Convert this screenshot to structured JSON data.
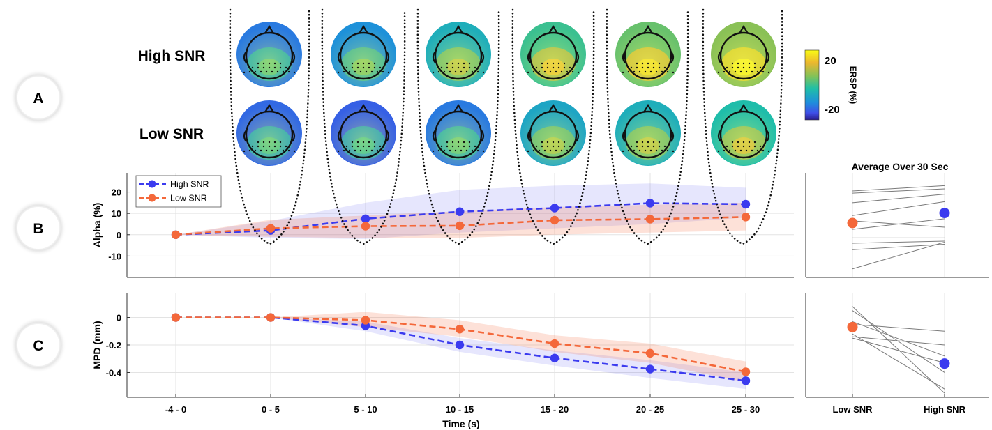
{
  "panels": {
    "a": "A",
    "b": "B",
    "c": "C"
  },
  "topomaps": {
    "row_labels": [
      "High SNR",
      "Low SNR"
    ],
    "rows": [
      {
        "ersp": [
          -6,
          -3,
          3,
          9,
          13,
          16
        ]
      },
      {
        "ersp": [
          -8,
          -9,
          -6,
          1,
          3,
          6
        ]
      }
    ],
    "colorbar": {
      "label": "ERSP (%)",
      "ticks": [
        "20",
        "-20"
      ],
      "range": [
        -25,
        25
      ]
    }
  },
  "legend": {
    "entries": [
      "High SNR",
      "Low SNR"
    ]
  },
  "chart_data": [
    {
      "type": "line",
      "xlabel": "",
      "ylabel": "Alpha (%)",
      "categories": [
        "-4 - 0",
        "0 - 5",
        "5 - 10",
        "10 - 15",
        "15 - 20",
        "20 - 25",
        "25 - 30"
      ],
      "yticks": [
        "20",
        "10",
        "0",
        "-10"
      ],
      "ylim": [
        -20,
        29
      ],
      "grid": true,
      "legend": "top-left",
      "series": [
        {
          "name": "High SNR",
          "color": "#3b3bef",
          "values": [
            0,
            2,
            7.5,
            10.8,
            12.5,
            14.8,
            14.3
          ],
          "band": [
            [
              0,
              0
            ],
            [
              -1.5,
              6.5
            ],
            [
              -2,
              15
            ],
            [
              1,
              21
            ],
            [
              3,
              23
            ],
            [
              5,
              24
            ],
            [
              8,
              22
            ]
          ]
        },
        {
          "name": "Low SNR",
          "color": "#f4683a",
          "values": [
            0,
            3,
            4,
            4.2,
            6.8,
            7.3,
            8.3
          ],
          "band": [
            [
              0,
              0
            ],
            [
              -1,
              7
            ],
            [
              -1.5,
              9
            ],
            [
              -1.5,
              11
            ],
            [
              0,
              13
            ],
            [
              1,
              14
            ],
            [
              2,
              15
            ]
          ]
        }
      ]
    },
    {
      "type": "line",
      "xlabel": "Time (s)",
      "ylabel": "MPD (mm)",
      "categories": [
        "-4 - 0",
        "0 - 5",
        "5 - 10",
        "10 - 15",
        "15 - 20",
        "20 - 25",
        "25 - 30"
      ],
      "yticks": [
        "0",
        "-0.2",
        "-0.4"
      ],
      "ylim": [
        -0.58,
        0.18
      ],
      "grid": true,
      "series": [
        {
          "name": "High SNR",
          "color": "#3b3bef",
          "values": [
            0,
            0,
            -0.06,
            -0.2,
            -0.295,
            -0.375,
            -0.46
          ],
          "band": [
            [
              0,
              0
            ],
            [
              0,
              0
            ],
            [
              -0.1,
              -0.03
            ],
            [
              -0.25,
              -0.15
            ],
            [
              -0.35,
              -0.24
            ],
            [
              -0.44,
              -0.31
            ],
            [
              -0.52,
              -0.4
            ]
          ]
        },
        {
          "name": "Low SNR",
          "color": "#f4683a",
          "values": [
            0,
            0,
            -0.02,
            -0.085,
            -0.19,
            -0.26,
            -0.395
          ],
          "band": [
            [
              0,
              0
            ],
            [
              0,
              0
            ],
            [
              -0.07,
              0.04
            ],
            [
              -0.14,
              -0.02
            ],
            [
              -0.25,
              -0.13
            ],
            [
              -0.33,
              -0.19
            ],
            [
              -0.47,
              -0.32
            ]
          ]
        }
      ]
    },
    {
      "type": "scatter",
      "title": "Average Over 30 Sec",
      "categories": [
        "Low SNR",
        "High SNR"
      ],
      "ylim": [
        -20,
        29
      ],
      "means": [
        {
          "name": "Low SNR",
          "value": 5.5,
          "color": "#f4683a"
        },
        {
          "name": "High SNR",
          "value": 10.2,
          "color": "#3b3bef"
        }
      ],
      "subjects": [
        [
          20.5,
          23
        ],
        [
          19.5,
          21.5
        ],
        [
          15,
          19
        ],
        [
          9,
          15.5
        ],
        [
          6.5,
          3.5
        ],
        [
          2.5,
          7.5
        ],
        [
          -1.5,
          -1.5
        ],
        [
          -4,
          -3
        ],
        [
          -7,
          -4.5
        ],
        [
          -16,
          -3.5
        ]
      ]
    },
    {
      "type": "scatter",
      "categories": [
        "Low SNR",
        "High SNR"
      ],
      "ylim": [
        -0.58,
        0.18
      ],
      "means": [
        {
          "name": "Low SNR",
          "value": -0.07,
          "color": "#f4683a"
        },
        {
          "name": "High SNR",
          "value": -0.335,
          "color": "#3b3bef"
        }
      ],
      "subjects": [
        [
          0.08,
          -0.55
        ],
        [
          0.05,
          -0.4
        ],
        [
          -0.03,
          -0.28
        ],
        [
          -0.05,
          -0.1
        ],
        [
          -0.12,
          -0.52
        ],
        [
          -0.14,
          -0.2
        ],
        [
          -0.15,
          -0.33
        ]
      ]
    }
  ]
}
